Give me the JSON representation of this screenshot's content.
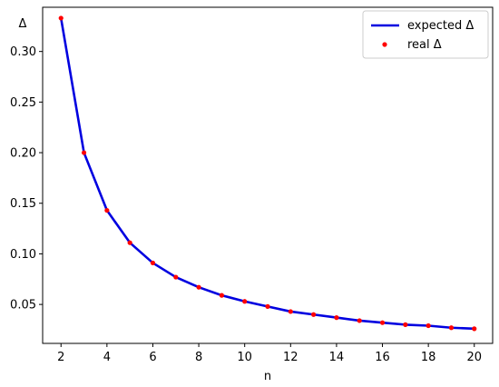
{
  "chart_data": {
    "type": "line",
    "xlabel": "n",
    "ylabel": "Δ",
    "xlim": [
      1.2,
      20.8
    ],
    "ylim": [
      0.0115,
      0.3437
    ],
    "x_ticks": [
      2,
      4,
      6,
      8,
      10,
      12,
      14,
      16,
      18,
      20
    ],
    "y_ticks": [
      0.05,
      0.1,
      0.15,
      0.2,
      0.25,
      0.3
    ],
    "y_tick_labels": [
      "0.05",
      "0.10",
      "0.15",
      "0.20",
      "0.25",
      "0.30"
    ],
    "grid": false,
    "legend_position": "top-right",
    "series": [
      {
        "name": "expected Δ",
        "kind": "line",
        "color": "#0000e0",
        "x": [
          2,
          3,
          4,
          5,
          6,
          7,
          8,
          9,
          10,
          11,
          12,
          13,
          14,
          15,
          16,
          17,
          18,
          19,
          20
        ],
        "y": [
          0.333,
          0.2,
          0.143,
          0.111,
          0.091,
          0.077,
          0.067,
          0.059,
          0.053,
          0.048,
          0.043,
          0.04,
          0.037,
          0.034,
          0.032,
          0.03,
          0.029,
          0.027,
          0.026
        ]
      },
      {
        "name": "real Δ",
        "kind": "scatter",
        "color": "#ff0000",
        "x": [
          2,
          3,
          4,
          5,
          6,
          7,
          8,
          9,
          10,
          11,
          12,
          13,
          14,
          15,
          16,
          17,
          18,
          19,
          20
        ],
        "y": [
          0.333,
          0.2,
          0.143,
          0.111,
          0.091,
          0.077,
          0.067,
          0.059,
          0.053,
          0.048,
          0.043,
          0.04,
          0.037,
          0.034,
          0.032,
          0.03,
          0.029,
          0.027,
          0.026
        ]
      }
    ]
  }
}
